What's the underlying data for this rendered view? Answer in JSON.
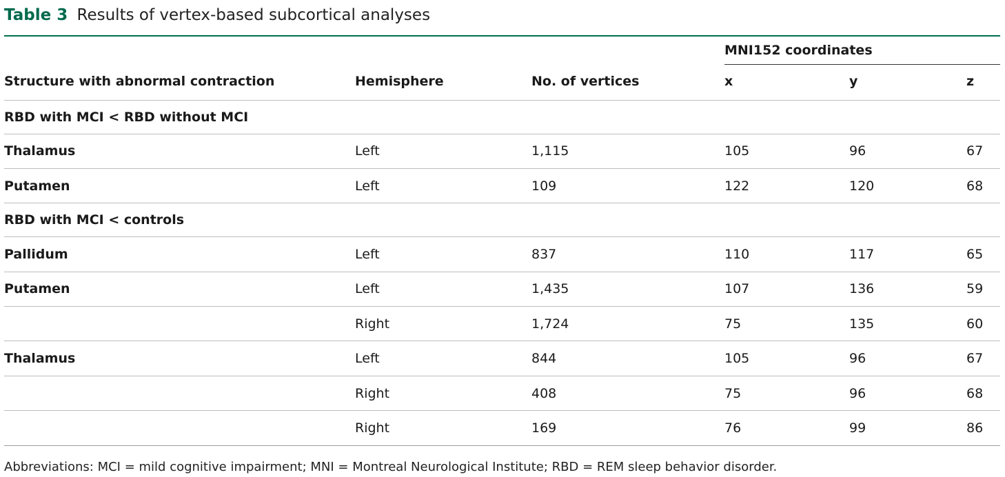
{
  "caption": {
    "label": "Table 3",
    "title": "Results of vertex-based subcortical analyses"
  },
  "header": {
    "structure": "Structure with abnormal contraction",
    "hemisphere": "Hemisphere",
    "vertices": "No. of vertices",
    "coords_group": "MNI152 coordinates",
    "x": "x",
    "y": "y",
    "z": "z"
  },
  "groups": [
    {
      "label": "RBD with MCI < RBD without MCI",
      "rows": [
        {
          "structure": "Thalamus",
          "hemisphere": "Left",
          "vertices": "1,115",
          "x": "105",
          "y": "96",
          "z": "67"
        },
        {
          "structure": "Putamen",
          "hemisphere": "Left",
          "vertices": "109",
          "x": "122",
          "y": "120",
          "z": "68"
        }
      ]
    },
    {
      "label": "RBD with MCI < controls",
      "rows": [
        {
          "structure": "Pallidum",
          "hemisphere": "Left",
          "vertices": "837",
          "x": "110",
          "y": "117",
          "z": "65"
        },
        {
          "structure": "Putamen",
          "hemisphere": "Left",
          "vertices": "1,435",
          "x": "107",
          "y": "136",
          "z": "59"
        },
        {
          "structure": "",
          "hemisphere": "Right",
          "vertices": "1,724",
          "x": "75",
          "y": "135",
          "z": "60"
        },
        {
          "structure": "Thalamus",
          "hemisphere": "Left",
          "vertices": "844",
          "x": "105",
          "y": "96",
          "z": "67"
        },
        {
          "structure": "",
          "hemisphere": "Right",
          "vertices": "408",
          "x": "75",
          "y": "96",
          "z": "68"
        },
        {
          "structure": "",
          "hemisphere": "Right",
          "vertices": "169",
          "x": "76",
          "y": "99",
          "z": "86"
        }
      ]
    }
  ],
  "footnote": "Abbreviations: MCI = mild cognitive impairment; MNI = Montreal Neurological Institute; RBD = REM sleep behavior disorder.",
  "colors": {
    "accent": "#006a4d",
    "rule": "#bdbdbd"
  }
}
